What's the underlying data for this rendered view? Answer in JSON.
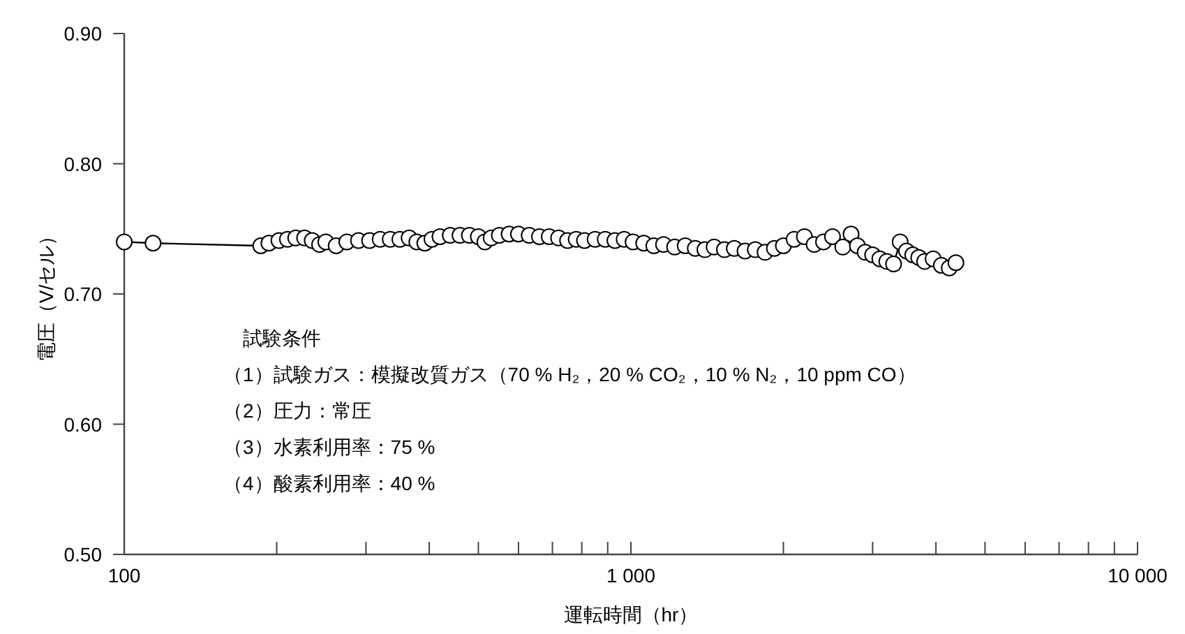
{
  "chart_data": {
    "type": "line",
    "xlabel": "運転時間（hr）",
    "ylabel": "電圧（V/セル）",
    "log": "x",
    "marker": "circle",
    "line_style": "solid",
    "grid": false,
    "xlim": [
      100,
      10000
    ],
    "xticks": [
      100,
      {
        "value": 1000,
        "label": "1 000"
      },
      {
        "value": 10000,
        "label": "10 000"
      }
    ],
    "ylim": [
      0.5,
      0.9
    ],
    "yticks": [
      {
        "value": 0.5,
        "label": "0.50"
      },
      {
        "value": 0.6,
        "label": "0.60"
      },
      {
        "value": 0.7,
        "label": "0.70"
      },
      {
        "value": 0.8,
        "label": "0.80"
      },
      {
        "value": 0.9,
        "label": "0.90"
      }
    ],
    "annotations": [
      "試験条件",
      "（1）試験ガス：模擬改質ガス（70 % H₂，20 % CO₂，10 % N₂，10 ppm CO）",
      "（2）圧力：常圧",
      "（3）水素利用率：75 %",
      "（4）酸素利用率：40 %"
    ],
    "series": [
      {
        "color": "#000000",
        "x": [
          100,
          114,
          186,
          193,
          202,
          210,
          218,
          227,
          235,
          243,
          250,
          262,
          275,
          290,
          305,
          320,
          335,
          350,
          365,
          378,
          392,
          405,
          420,
          440,
          460,
          480,
          500,
          515,
          530,
          550,
          575,
          600,
          630,
          660,
          690,
          720,
          750,
          780,
          810,
          850,
          890,
          930,
          970,
          1010,
          1060,
          1110,
          1160,
          1220,
          1280,
          1340,
          1400,
          1460,
          1530,
          1600,
          1680,
          1760,
          1840,
          1920,
          2000,
          2100,
          2200,
          2300,
          2400,
          2500,
          2620,
          2720,
          2800,
          2900,
          3000,
          3100,
          3200,
          3300,
          3400,
          3500,
          3600,
          3700,
          3800,
          3950,
          4100,
          4250,
          4380
        ],
        "values": [
          0.74,
          0.739,
          0.737,
          0.739,
          0.741,
          0.742,
          0.743,
          0.743,
          0.741,
          0.738,
          0.74,
          0.737,
          0.74,
          0.741,
          0.741,
          0.742,
          0.742,
          0.742,
          0.743,
          0.74,
          0.739,
          0.742,
          0.744,
          0.745,
          0.745,
          0.745,
          0.744,
          0.74,
          0.743,
          0.745,
          0.746,
          0.746,
          0.745,
          0.744,
          0.744,
          0.743,
          0.741,
          0.742,
          0.741,
          0.742,
          0.742,
          0.741,
          0.742,
          0.74,
          0.739,
          0.737,
          0.738,
          0.736,
          0.737,
          0.735,
          0.734,
          0.736,
          0.734,
          0.735,
          0.733,
          0.734,
          0.732,
          0.735,
          0.737,
          0.742,
          0.744,
          0.738,
          0.74,
          0.744,
          0.736,
          0.746,
          0.737,
          0.732,
          0.73,
          0.727,
          0.725,
          0.723,
          0.74,
          0.733,
          0.73,
          0.728,
          0.725,
          0.727,
          0.722,
          0.72,
          0.724
        ]
      }
    ]
  }
}
